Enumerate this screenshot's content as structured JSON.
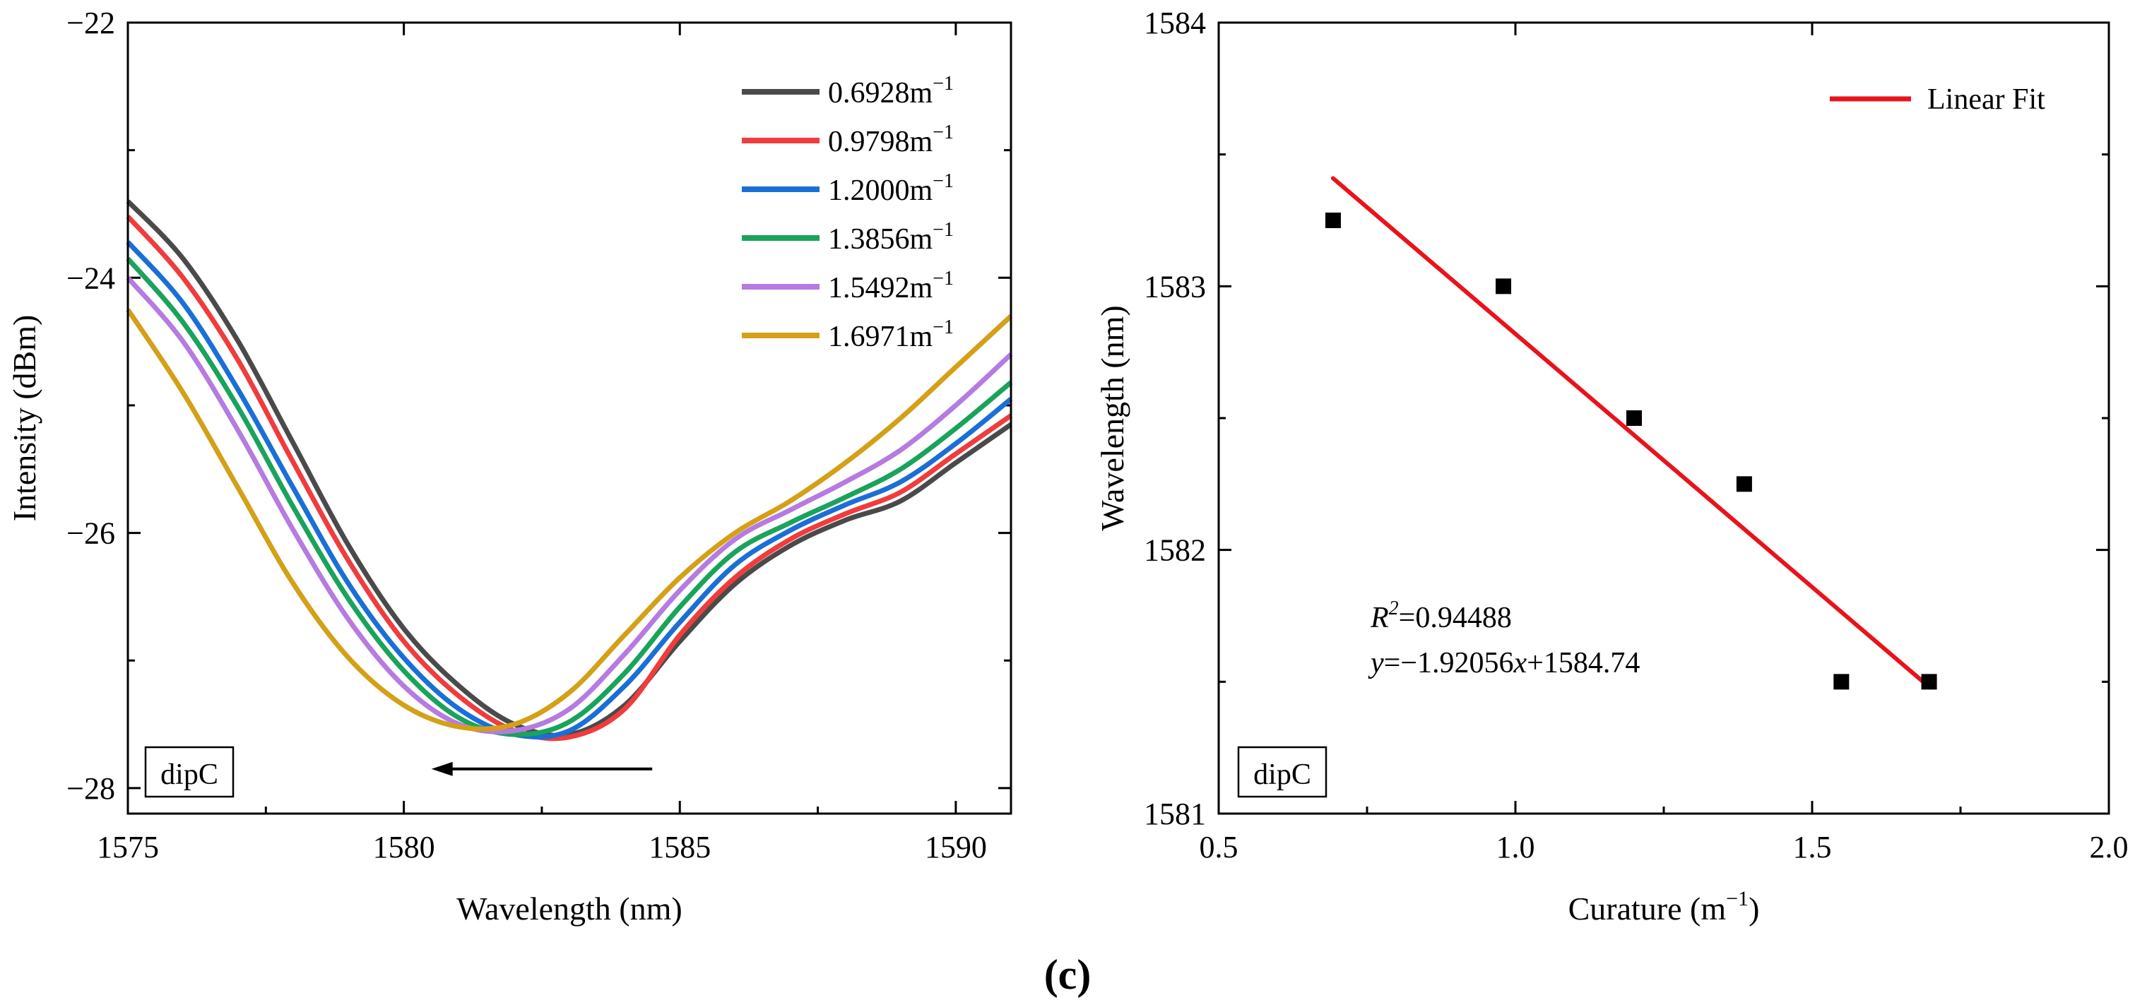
{
  "figure_label": "(c)",
  "chart_data": [
    {
      "type": "line",
      "xlabel": "Wavelength (nm)",
      "ylabel": "Intensity (dBm)",
      "xlim": [
        1575,
        1591
      ],
      "ylim": [
        -28.2,
        -22
      ],
      "xticks": [
        1575,
        1580,
        1585,
        1590
      ],
      "xtick_labels": [
        "1575",
        "1580",
        "1585",
        "1590"
      ],
      "yticks": [
        -28,
        -26,
        -24,
        -22
      ],
      "ytick_labels": [
        "−28",
        "−26",
        "−24",
        "−22"
      ],
      "yminor": [
        -27,
        -25,
        -23
      ],
      "xminor": [
        1577.5,
        1582.5,
        1587.5
      ],
      "box_label": "dipC",
      "arrow": {
        "from": [
          1584.5,
          -27.85
        ],
        "to": [
          1580.5,
          -27.85
        ]
      },
      "grid": false,
      "series": [
        {
          "name": "0.6928m⁻¹",
          "label": "0.6928m",
          "sup": "−1",
          "color": "#4a4a4a",
          "x": [
            1575,
            1576,
            1577,
            1578,
            1579,
            1580,
            1581,
            1582,
            1583,
            1584,
            1585,
            1586,
            1587,
            1588,
            1589,
            1590,
            1591
          ],
          "y": [
            -23.4,
            -23.85,
            -24.5,
            -25.3,
            -26.1,
            -26.75,
            -27.2,
            -27.5,
            -27.58,
            -27.35,
            -26.85,
            -26.4,
            -26.1,
            -25.9,
            -25.75,
            -25.45,
            -25.15
          ]
        },
        {
          "name": "0.9798m⁻¹",
          "label": "0.9798m",
          "sup": "−1",
          "color": "#f03c3c",
          "x": [
            1575,
            1576,
            1577,
            1578,
            1579,
            1580,
            1581,
            1582,
            1583,
            1584,
            1585,
            1586,
            1587,
            1588,
            1589,
            1590,
            1591
          ],
          "y": [
            -23.52,
            -24.0,
            -24.65,
            -25.45,
            -26.22,
            -26.85,
            -27.28,
            -27.55,
            -27.6,
            -27.38,
            -26.8,
            -26.35,
            -26.05,
            -25.85,
            -25.68,
            -25.38,
            -25.08
          ]
        },
        {
          "name": "1.2000m⁻¹",
          "label": "1.2000m",
          "sup": "−1",
          "color": "#1a6fd6",
          "x": [
            1575,
            1576,
            1577,
            1578,
            1579,
            1580,
            1581,
            1582,
            1583,
            1584,
            1585,
            1586,
            1587,
            1588,
            1589,
            1590,
            1591
          ],
          "y": [
            -23.72,
            -24.2,
            -24.88,
            -25.65,
            -26.4,
            -26.98,
            -27.38,
            -27.58,
            -27.55,
            -27.2,
            -26.7,
            -26.25,
            -25.98,
            -25.78,
            -25.6,
            -25.3,
            -24.95
          ]
        },
        {
          "name": "1.3856m⁻¹",
          "label": "1.3856m",
          "sup": "−1",
          "color": "#1aa35a",
          "x": [
            1575,
            1576,
            1577,
            1578,
            1579,
            1580,
            1581,
            1582,
            1583,
            1584,
            1585,
            1586,
            1587,
            1588,
            1589,
            1590,
            1591
          ],
          "y": [
            -23.85,
            -24.35,
            -25.02,
            -25.8,
            -26.52,
            -27.08,
            -27.45,
            -27.58,
            -27.48,
            -27.1,
            -26.58,
            -26.15,
            -25.92,
            -25.72,
            -25.5,
            -25.18,
            -24.82
          ]
        },
        {
          "name": "1.5492m⁻¹",
          "label": "1.5492m",
          "sup": "−1",
          "color": "#b57be0",
          "x": [
            1575,
            1576,
            1577,
            1578,
            1579,
            1580,
            1581,
            1582,
            1583,
            1584,
            1585,
            1586,
            1587,
            1588,
            1589,
            1590,
            1591
          ],
          "y": [
            -24.0,
            -24.5,
            -25.2,
            -25.98,
            -26.68,
            -27.2,
            -27.5,
            -27.55,
            -27.38,
            -26.95,
            -26.45,
            -26.05,
            -25.82,
            -25.6,
            -25.35,
            -25.0,
            -24.6
          ]
        },
        {
          "name": "1.6971m⁻¹",
          "label": "1.6971m",
          "sup": "−1",
          "color": "#d4a017",
          "x": [
            1575,
            1576,
            1577,
            1578,
            1579,
            1580,
            1581,
            1582,
            1583,
            1584,
            1585,
            1586,
            1587,
            1588,
            1589,
            1590,
            1591
          ],
          "y": [
            -24.25,
            -24.9,
            -25.65,
            -26.4,
            -26.98,
            -27.35,
            -27.52,
            -27.5,
            -27.25,
            -26.8,
            -26.35,
            -26.0,
            -25.75,
            -25.45,
            -25.1,
            -24.7,
            -24.3
          ]
        }
      ]
    },
    {
      "type": "scatter",
      "xlabel": "Curature (m",
      "xlabel_sup": "−1",
      "xlabel_end": ")",
      "ylabel": "Wavelength (nm)",
      "xlim": [
        0.5,
        2.0
      ],
      "ylim": [
        1581,
        1584
      ],
      "xticks": [
        0.5,
        1.0,
        1.5,
        2.0
      ],
      "xtick_labels": [
        "0.5",
        "1.0",
        "1.5",
        "2.0"
      ],
      "yticks": [
        1581,
        1582,
        1583,
        1584
      ],
      "ytick_labels": [
        "1581",
        "1582",
        "1583",
        "1584"
      ],
      "yminor": [
        1581.5,
        1582.5,
        1583.5
      ],
      "xminor": [
        0.75,
        1.25,
        1.75
      ],
      "box_label": "dipC",
      "grid": false,
      "points": {
        "x": [
          0.6928,
          0.9798,
          1.2,
          1.3856,
          1.5492,
          1.6971
        ],
        "y": [
          1583.25,
          1583.0,
          1582.5,
          1582.25,
          1581.5,
          1581.5
        ]
      },
      "fit": {
        "name": "Linear Fit",
        "slope": -1.92056,
        "intercept": 1584.74,
        "x_range": [
          0.6928,
          1.6971
        ],
        "color": "#e8141b"
      },
      "annotation": {
        "r2_label": "R",
        "r2_sup": "2",
        "r2_value": "=0.94488",
        "eq_y": "y",
        "eq_mid": "=−1.92056",
        "eq_x": "x",
        "eq_end": "+1584.74"
      }
    }
  ]
}
